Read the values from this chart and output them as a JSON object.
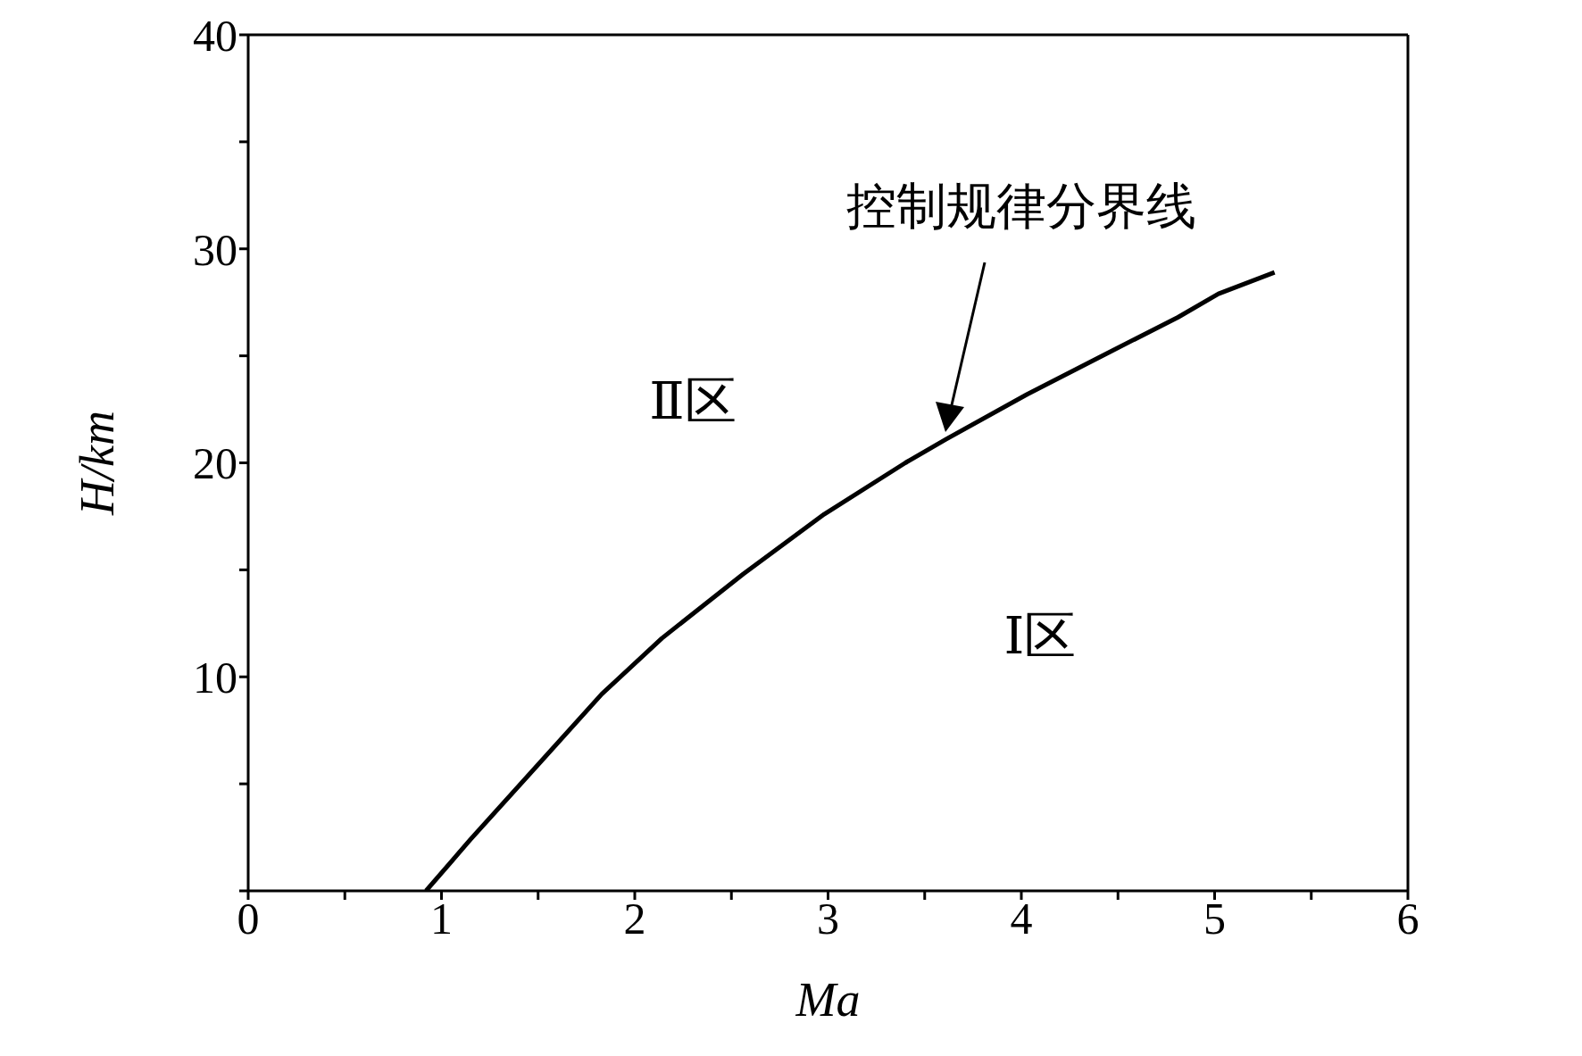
{
  "chart_data": {
    "type": "line",
    "xlabel": "Ma",
    "ylabel": "H/km",
    "xlim": [
      0,
      6
    ],
    "ylim": [
      0,
      40
    ],
    "xticks": [
      0,
      {
        "value": 0.5,
        "label": null
      },
      1,
      {
        "value": 1.5,
        "label": null
      },
      2,
      {
        "value": 2.5,
        "label": null
      },
      3,
      {
        "value": 3.5,
        "label": null
      },
      4,
      {
        "value": 4.5,
        "label": null
      },
      5,
      {
        "value": 5.5,
        "label": null
      },
      6
    ],
    "yticks": [
      {
        "value": 0,
        "label": null
      },
      {
        "value": 5,
        "label": null
      },
      10,
      {
        "value": 15,
        "label": null
      },
      20,
      {
        "value": 25,
        "label": null
      },
      30,
      {
        "value": 35,
        "label": null
      },
      40
    ],
    "series": [
      {
        "color": "#000000",
        "x": [
          0.92,
          1.15,
          1.52,
          1.83,
          2.14,
          2.56,
          2.98,
          3.4,
          3.61,
          4.03,
          4.44,
          4.81,
          5.02,
          5.31
        ],
        "values": [
          0,
          2.4,
          6.1,
          9.2,
          11.8,
          14.8,
          17.6,
          20,
          21.1,
          23.2,
          25.1,
          26.8,
          27.9,
          28.9
        ]
      }
    ],
    "annotations": [
      "控制规律分界线",
      "Ⅱ区",
      "Ⅰ区"
    ],
    "legend": false,
    "marker": "none",
    "line_style": "solid"
  }
}
